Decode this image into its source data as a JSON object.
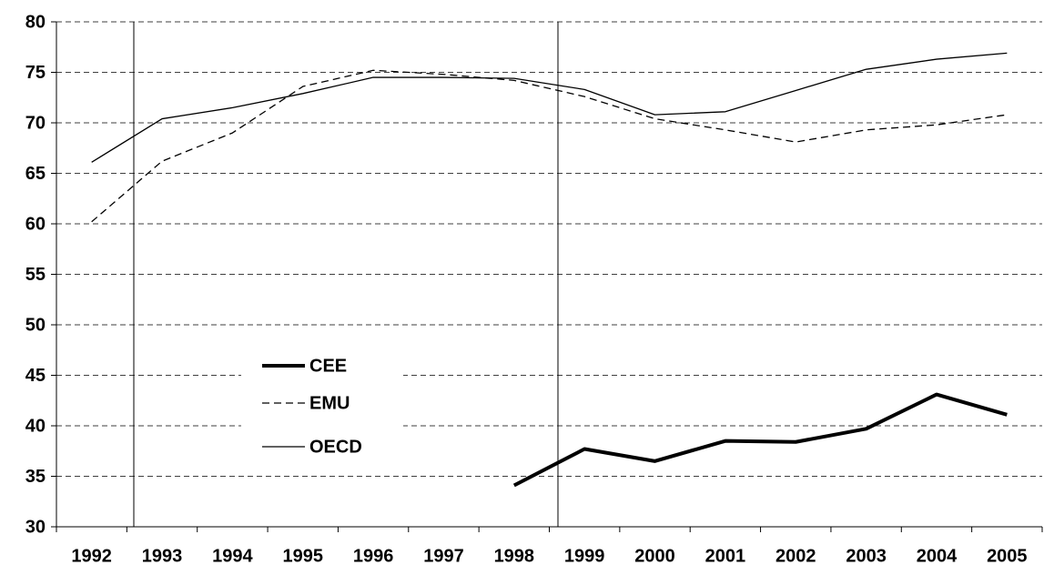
{
  "chart_data": {
    "type": "line",
    "categories": [
      "1992",
      "1993",
      "1994",
      "1995",
      "1996",
      "1997",
      "1998",
      "1999",
      "2000",
      "2001",
      "2002",
      "2003",
      "2004",
      "2005"
    ],
    "series": [
      {
        "name": "CEE",
        "color": "#000000",
        "width": 4,
        "dashed": false,
        "values": [
          null,
          null,
          null,
          null,
          null,
          null,
          34.1,
          37.7,
          36.5,
          38.5,
          38.4,
          39.7,
          43.1,
          41.1
        ]
      },
      {
        "name": "EMU",
        "color": "#000000",
        "width": 1.3,
        "dashed": true,
        "values": [
          60.2,
          66.2,
          69.0,
          73.6,
          75.2,
          74.8,
          74.2,
          72.6,
          70.4,
          69.3,
          68.1,
          69.3,
          69.8,
          70.8
        ]
      },
      {
        "name": "OECD",
        "color": "#000000",
        "width": 1.3,
        "dashed": false,
        "values": [
          66.1,
          70.4,
          71.5,
          72.9,
          74.5,
          74.5,
          74.4,
          73.3,
          70.8,
          71.1,
          73.2,
          75.3,
          76.3,
          76.9
        ]
      }
    ],
    "ylim": [
      30,
      80
    ],
    "yticks": [
      30,
      35,
      40,
      45,
      50,
      55,
      60,
      65,
      70,
      75,
      80
    ],
    "grid": true
  }
}
